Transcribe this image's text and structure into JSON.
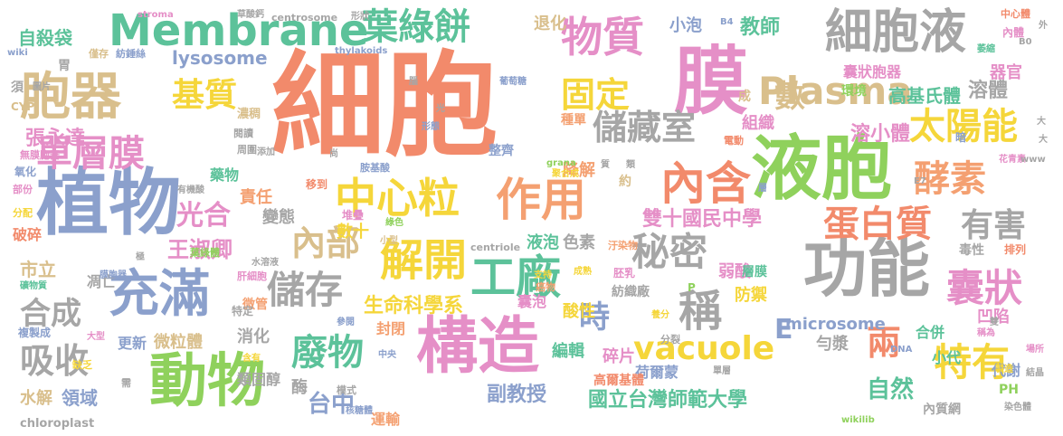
{
  "word_cloud": {
    "colors": {
      "orange": "#f4a071",
      "salmon": "#f28a6b",
      "green": "#8fd15c",
      "teal": "#5cc29a",
      "blue": "#8ba0cc",
      "pink": "#e58fc7",
      "yellow": "#f5d63a",
      "tan": "#d9bf8c",
      "gray": "#a6a6a6"
    },
    "words": [
      "細胞",
      "液胞",
      "植物",
      "構造",
      "膜",
      "動物",
      "功能",
      "Membrane",
      "Plasma",
      "vacuole",
      "充滿",
      "胞器",
      "細胞液",
      "葉綠餅",
      "物質",
      "中心粒",
      "作用",
      "內含",
      "解開",
      "工廠",
      "儲存",
      "單層膜",
      "基質",
      "固定",
      "儲藏室",
      "太陽能",
      "酵素",
      "蛋白質",
      "有害",
      "秘密",
      "囊狀",
      "特有",
      "廢物",
      "吸收",
      "合成",
      "內部",
      "光合",
      "稱",
      "時",
      "兩",
      "雙十國民中學",
      "國立台灣師範大學",
      "生命科學系",
      "副教授",
      "王淑卿",
      "張永達",
      "台中",
      "自然",
      "數",
      "溶小體",
      "溶體",
      "高基氏體",
      "囊狀胞器",
      "自殺袋",
      "lysosome",
      "教師",
      "退化",
      "小泡",
      "組織",
      "器官",
      "責任",
      "變態",
      "數十",
      "液泡",
      "色素",
      "降解",
      "微粒體",
      "microsome",
      "凹陷",
      "代謝",
      "編輯",
      "碎片",
      "酸性",
      "弱酸",
      "防禦",
      "合併",
      "小代",
      "勻漿",
      "荷爾蒙",
      "消化",
      "酶",
      "類固醇",
      "運輸",
      "高爾基體",
      "內質網",
      "PH",
      "領域",
      "水解",
      "市立",
      "凋亡",
      "更新",
      "破碎",
      "chloroplast",
      "centrosome",
      "thylakoids",
      "stroma",
      "grana",
      "centriole",
      "wikilib",
      "wiki",
      "CYP",
      "DNA",
      "葉綠體",
      "肝細胞",
      "囊泡",
      "封閉",
      "E",
      "毒性",
      "排列",
      "染色體",
      "形狀",
      "外",
      "中心體",
      "內體",
      "B0",
      "B4",
      "草酸鈣",
      "僅存",
      "紡錘絲",
      "胃",
      "須",
      "圖片",
      "濃稠",
      "形態",
      "光",
      "整齊",
      "種單",
      "成",
      "約",
      "藥物",
      "氧化",
      "部份",
      "分配",
      "有機酸",
      "無膜胞器",
      "胺基酸",
      "葡萄糖",
      "聚合成",
      "層膜",
      "微管",
      "水溶液",
      "膜胞器",
      "礦物質",
      "特定",
      "缺乏",
      "複製成",
      "大型",
      "極",
      "參閱",
      "模式",
      "核糖體",
      "含有",
      "中央",
      "需",
      "結晶",
      "場所",
      "製造",
      "稱為",
      "支持",
      "紡織廠",
      "胚乳",
      "汙染物",
      "萎縮",
      "花青素",
      "www",
      "E7",
      "層",
      "電動",
      "質",
      "類",
      "尚",
      "小型",
      "綠色",
      "堆疊",
      "移到",
      "周圍",
      "添加",
      "腦",
      "閱讀",
      "分裂",
      "養分",
      "癌物",
      "雙",
      "暗",
      "單層",
      "成熟",
      "P",
      "環境",
      "大",
      "大"
    ]
  }
}
